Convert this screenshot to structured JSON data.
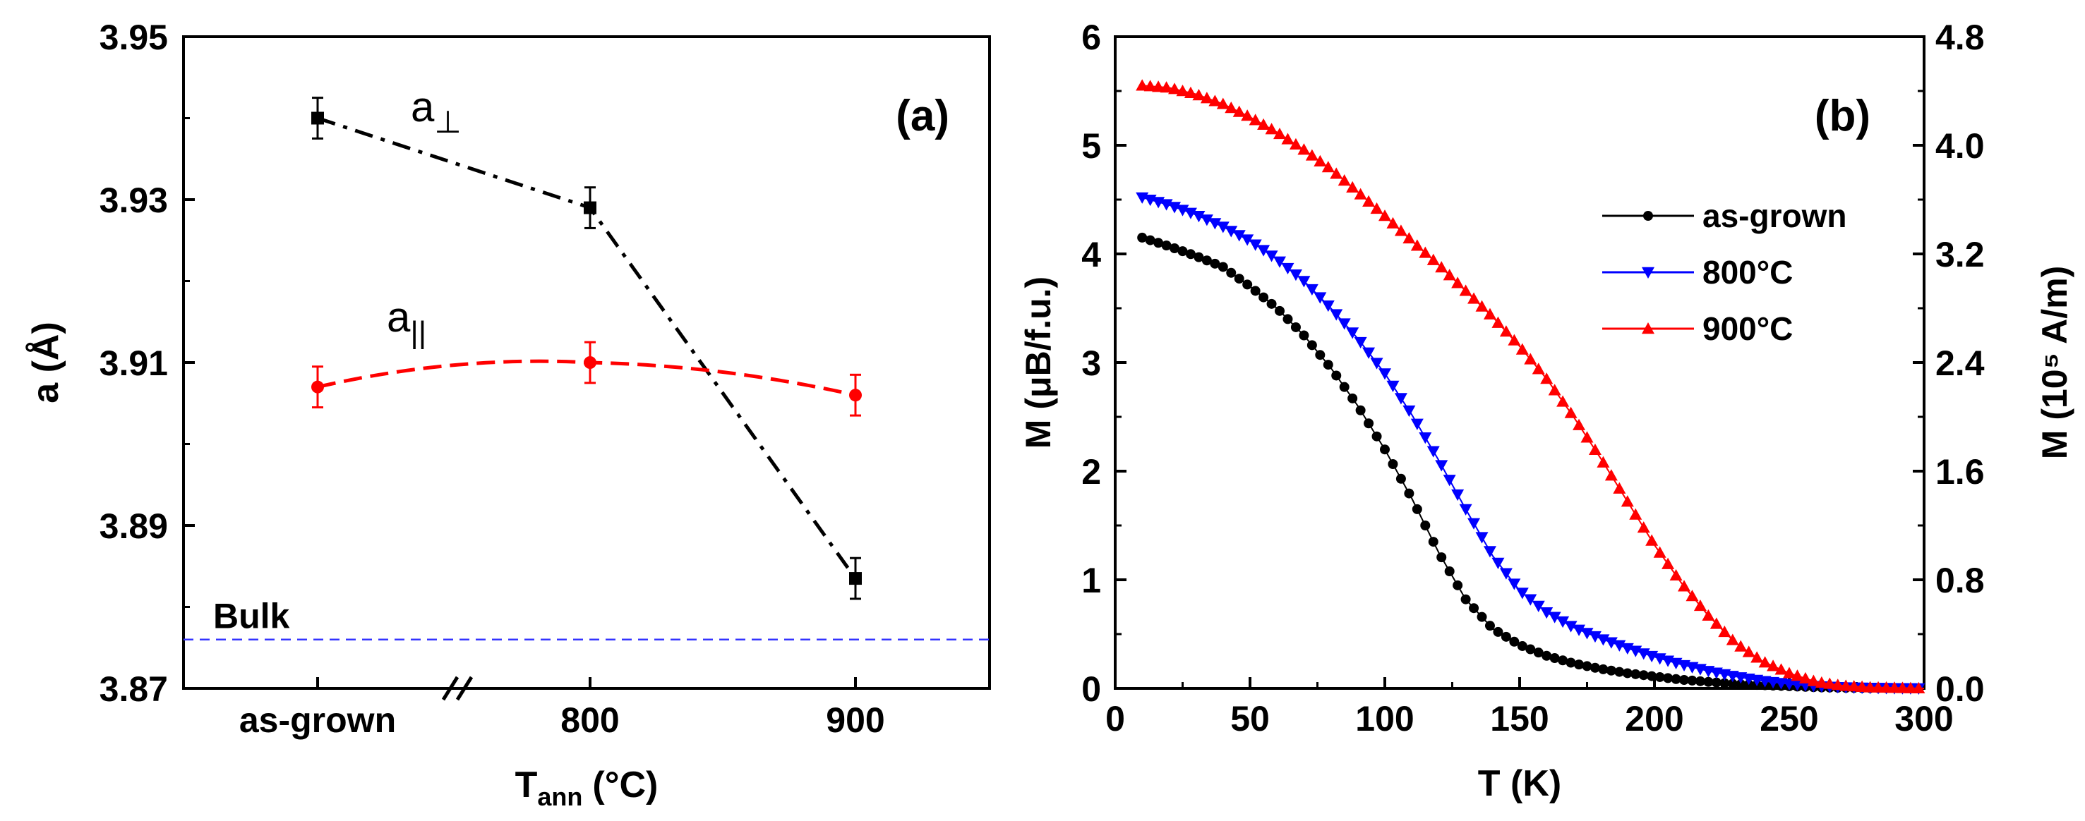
{
  "chart_data": [
    {
      "panel": "(a)",
      "type": "line",
      "xlabel_main": "T",
      "xlabel_sub": "ann",
      "xlabel_unit": "(°C)",
      "ylabel": "a (Å)",
      "categories": [
        "as-grown",
        "800",
        "900"
      ],
      "ylim": [
        3.87,
        3.95
      ],
      "yticks": [
        "3.87",
        "3.89",
        "3.91",
        "3.93",
        "3.95"
      ],
      "series": [
        {
          "name": "a⊥",
          "label_main": "a",
          "label_sub": "⊥",
          "color": "#000000",
          "marker": "square",
          "values": [
            3.94,
            3.929,
            3.8835
          ],
          "errors": [
            0.0025,
            0.0025,
            0.0025
          ]
        },
        {
          "name": "a||",
          "label_main": "a",
          "label_sub": "||",
          "color": "#ff0000",
          "marker": "circle",
          "values": [
            3.907,
            3.91,
            3.906
          ],
          "errors": [
            0.0025,
            0.0025,
            0.0025
          ]
        }
      ],
      "reference_line": {
        "label": "Bulk",
        "value": 3.876,
        "color": "#3333ff"
      },
      "axis_break": true
    },
    {
      "panel": "(b)",
      "type": "scatter",
      "xlabel": "T (K)",
      "ylabel_left": "M (μB/f.u.)",
      "ylabel_right": "M (10⁵ A/m)",
      "xlim": [
        0,
        300
      ],
      "xticks": [
        "0",
        "50",
        "100",
        "150",
        "200",
        "250",
        "300"
      ],
      "ylim_left": [
        0,
        6
      ],
      "yticks_left": [
        "0",
        "1",
        "2",
        "3",
        "4",
        "5",
        "6"
      ],
      "ylim_right": [
        0,
        4.8
      ],
      "yticks_right": [
        "0.0",
        "0.8",
        "1.6",
        "2.4",
        "3.2",
        "4.0",
        "4.8"
      ],
      "legend_position": "upper-right",
      "series": [
        {
          "name": "as-grown",
          "color": "#000000",
          "marker": "circle",
          "x": [
            10,
            20,
            30,
            40,
            50,
            60,
            70,
            80,
            90,
            100,
            110,
            120,
            130,
            140,
            150,
            160,
            170,
            180,
            190,
            200,
            210,
            220,
            230,
            240,
            250,
            260,
            270,
            280,
            290,
            300
          ],
          "y": [
            4.15,
            4.07,
            3.98,
            3.88,
            3.7,
            3.5,
            3.25,
            2.95,
            2.6,
            2.2,
            1.75,
            1.25,
            0.82,
            0.55,
            0.4,
            0.3,
            0.23,
            0.18,
            0.14,
            0.11,
            0.08,
            0.06,
            0.04,
            0.03,
            0.02,
            0.01,
            0.005,
            0.003,
            0.002,
            0.0
          ]
        },
        {
          "name": "800°C",
          "color": "#0000ff",
          "marker": "triangle-down",
          "x": [
            10,
            20,
            30,
            40,
            50,
            60,
            70,
            80,
            90,
            100,
            110,
            120,
            130,
            140,
            150,
            160,
            170,
            180,
            190,
            200,
            210,
            220,
            230,
            240,
            250,
            260,
            270,
            280,
            290,
            300
          ],
          "y": [
            4.52,
            4.45,
            4.36,
            4.25,
            4.12,
            3.95,
            3.75,
            3.5,
            3.22,
            2.9,
            2.52,
            2.1,
            1.65,
            1.22,
            0.9,
            0.7,
            0.56,
            0.46,
            0.37,
            0.29,
            0.22,
            0.16,
            0.11,
            0.07,
            0.04,
            0.02,
            0.01,
            0.005,
            0.002,
            0.0
          ]
        },
        {
          "name": "900°C",
          "color": "#ff0000",
          "marker": "triangle-up",
          "x": [
            10,
            20,
            30,
            40,
            50,
            60,
            70,
            80,
            90,
            100,
            110,
            120,
            130,
            140,
            150,
            160,
            170,
            180,
            190,
            200,
            210,
            220,
            230,
            240,
            250,
            260,
            270,
            280,
            290,
            300
          ],
          "y": [
            5.55,
            5.53,
            5.47,
            5.38,
            5.26,
            5.12,
            4.96,
            4.78,
            4.57,
            4.35,
            4.12,
            3.9,
            3.66,
            3.42,
            3.15,
            2.85,
            2.5,
            2.12,
            1.72,
            1.32,
            0.97,
            0.67,
            0.42,
            0.25,
            0.14,
            0.06,
            0.025,
            0.01,
            0.005,
            0.0
          ]
        }
      ]
    }
  ]
}
